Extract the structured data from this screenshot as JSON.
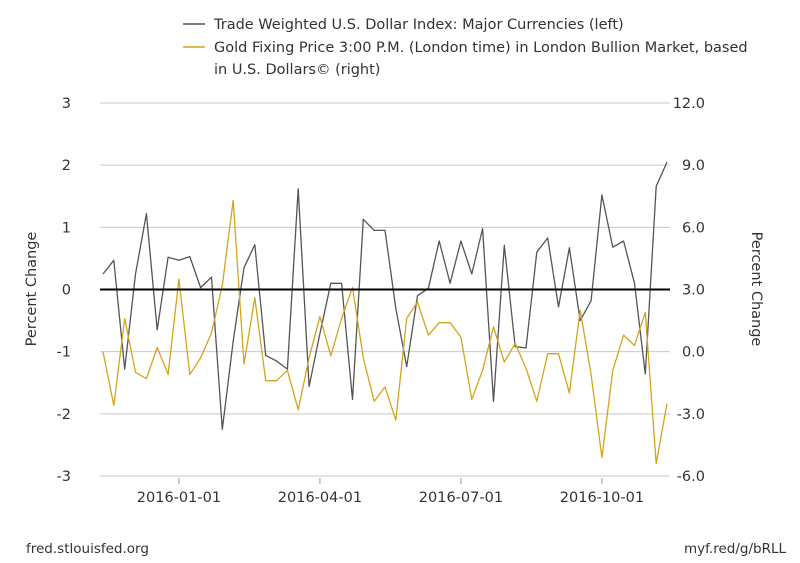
{
  "chart_data": {
    "type": "line",
    "legend_position": "top",
    "title": "",
    "grid": true,
    "x_label": "",
    "x_ticks": [
      {
        "label": "2016-01-01",
        "index": 7
      },
      {
        "label": "2016-04-01",
        "index": 20
      },
      {
        "label": "2016-07-01",
        "index": 33
      },
      {
        "label": "2016-10-01",
        "index": 46
      }
    ],
    "left_axis": {
      "label": "Percent Change",
      "range": [
        -3,
        3
      ],
      "ticks": [
        "3",
        "2",
        "1",
        "0",
        "-1",
        "-2",
        "-3"
      ]
    },
    "right_axis": {
      "label": "Percent Change",
      "range": [
        -6,
        12
      ],
      "ticks": [
        "12.0",
        "9.0",
        "6.0",
        "3.0",
        "0.0",
        "-3.0",
        "-6.0"
      ]
    },
    "zero_line": {
      "axis": "left",
      "value": 0
    },
    "series": [
      {
        "name": "Trade Weighted U.S. Dollar Index: Major Currencies (left)",
        "axis": "left",
        "color": "#555555",
        "values": [
          0.25,
          0.47,
          -1.28,
          0.25,
          1.22,
          -0.65,
          0.52,
          0.47,
          0.53,
          0.03,
          0.2,
          -2.25,
          -0.83,
          0.35,
          0.72,
          -1.06,
          -1.15,
          -1.28,
          1.62,
          -1.56,
          -0.71,
          0.1,
          0.1,
          -1.77,
          1.13,
          0.95,
          0.95,
          -0.3,
          -1.24,
          -0.1,
          0.02,
          0.78,
          0.1,
          0.78,
          0.25,
          0.98,
          -1.8,
          0.71,
          -0.92,
          -0.94,
          0.6,
          0.83,
          -0.28,
          0.67,
          -0.5,
          -0.18,
          1.52,
          0.68,
          0.78,
          0.1,
          -1.36,
          1.66,
          2.05
        ]
      },
      {
        "name": "Gold Fixing Price 3:00 P.M. (London time) in London Bullion Market, based in U.S. Dollars© (right)",
        "axis": "right",
        "color": "#d4a41c",
        "values": [
          0.0,
          -2.6,
          1.6,
          -1.0,
          -1.3,
          0.2,
          -1.1,
          3.5,
          -1.1,
          -0.3,
          0.9,
          3.2,
          7.3,
          -0.6,
          2.6,
          -1.4,
          -1.4,
          -0.9,
          -2.8,
          -0.3,
          1.7,
          -0.2,
          1.6,
          3.1,
          -0.3,
          -2.4,
          -1.7,
          -3.3,
          1.6,
          2.4,
          0.8,
          1.4,
          1.4,
          0.7,
          -2.3,
          -0.9,
          1.2,
          -0.5,
          0.4,
          -0.8,
          -2.4,
          -0.1,
          -0.1,
          -2.0,
          2.0,
          -1.1,
          -5.1,
          -0.9,
          0.8,
          0.3,
          1.9,
          -5.4,
          -2.5
        ]
      }
    ]
  },
  "footer": {
    "source": "fred.stlouisfed.org",
    "short_url": "myf.red/g/bRLL"
  }
}
